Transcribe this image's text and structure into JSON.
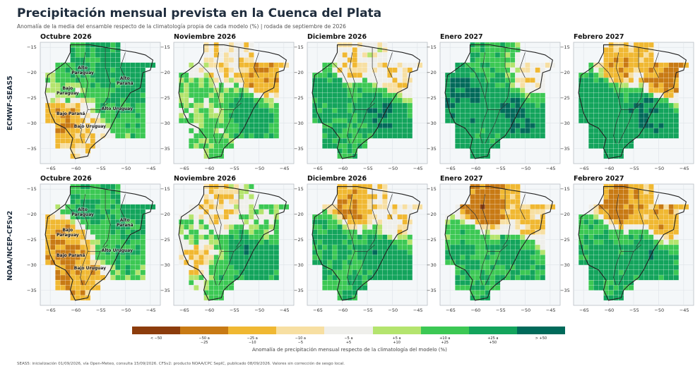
{
  "title": "Precipitación mensual prevista en la Cuenca del Plata",
  "subtitle": "Anomalía de la media del ensamble respecto de la climatología propia de cada modelo (%) | rodada de septiembre de 2026",
  "models": [
    "ECMWF-SEAS5",
    "NOAA/NCEP-CFSv2"
  ],
  "months": [
    "Octubre 2026",
    "Noviembre 2026",
    "Diciembre 2026",
    "Enero 2027",
    "Febrero 2027"
  ],
  "region_labels": [
    "Alto Paraguay",
    "Bajo Paraguay",
    "Alto Paraná",
    "Alto Uruguay",
    "Bajo Paraná",
    "Bajo Uruguay"
  ],
  "x_ticks": [
    "−65",
    "−60",
    "−55",
    "−50",
    "−45"
  ],
  "y_ticks": [
    "−15",
    "−20",
    "−25",
    "−30",
    "−35"
  ],
  "legend": {
    "title": "Anomalía de precipitación mensual respecto de la climatología del modelo (%)",
    "classes": [
      "< −50",
      "−50 a −25",
      "−25 a −10",
      "−10 a −5",
      "−5 a +5",
      "+5 a +10",
      "+10 a +25",
      "+25 a +50",
      "> +50"
    ],
    "colors": [
      "#8c3c0c",
      "#c87a14",
      "#f0b832",
      "#f7dfa2",
      "#efefeb",
      "#b4e46e",
      "#3cc854",
      "#13a45c",
      "#006a5a"
    ]
  },
  "footnote": "SEAS5: inicialización 01/09/2026, vía Open-Meteo, consulta 15/09/2026. CFSv2: producto NOAA/CPC SepIC, publicado 08/09/2026. Valores sin corrección de sesgo local.",
  "chart_data": {
    "type": "heatmap",
    "value": "Anomalía de precipitación mensual (%)",
    "x_range": [
      -67,
      -43
    ],
    "y_range": [
      -38,
      -14
    ],
    "grid_resolution_deg": 1,
    "regions": [
      {
        "name": "Alto Paraguay",
        "lon": -58.5,
        "lat": -19.5
      },
      {
        "name": "Bajo Paraguay",
        "lon": -61.5,
        "lat": -23.5
      },
      {
        "name": "Alto Paraná",
        "lon": -49.5,
        "lat": -21.5
      },
      {
        "name": "Alto Uruguay",
        "lon": -52.5,
        "lat": -27.5
      },
      {
        "name": "Bajo Paraná",
        "lon": -61.5,
        "lat": -28.5
      },
      {
        "name": "Bajo Uruguay",
        "lon": -58,
        "lat": -31
      }
    ],
    "panels": [
      {
        "model": "ECMWF-SEAS5",
        "month": "Octubre 2026",
        "anomaly_by_region": {
          "Alto Paraguay": 30,
          "Bajo Paraguay": 12,
          "Alto Paraná": 35,
          "Alto Uruguay": 25,
          "Bajo Paraná": -25,
          "Bajo Uruguay": -12
        }
      },
      {
        "model": "ECMWF-SEAS5",
        "month": "Noviembre 2026",
        "anomaly_by_region": {
          "Alto Paraguay": -5,
          "Bajo Paraguay": 15,
          "Alto Paraná": -25,
          "Alto Uruguay": 45,
          "Bajo Paraná": 10,
          "Bajo Uruguay": 12
        }
      },
      {
        "model": "ECMWF-SEAS5",
        "month": "Diciembre 2026",
        "anomaly_by_region": {
          "Alto Paraguay": -12,
          "Bajo Paraguay": 40,
          "Alto Paraná": -10,
          "Alto Uruguay": 55,
          "Bajo Paraná": 30,
          "Bajo Uruguay": 20
        }
      },
      {
        "model": "ECMWF-SEAS5",
        "month": "Enero 2027",
        "anomaly_by_region": {
          "Alto Paraguay": 20,
          "Bajo Paraguay": 55,
          "Alto Paraná": -6,
          "Alto Uruguay": 55,
          "Bajo Paraná": 45,
          "Bajo Uruguay": 30
        }
      },
      {
        "model": "ECMWF-SEAS5",
        "month": "Febrero 2027",
        "anomaly_by_region": {
          "Alto Paraguay": -25,
          "Bajo Paraguay": 40,
          "Alto Paraná": -30,
          "Alto Uruguay": 55,
          "Bajo Paraná": 40,
          "Bajo Uruguay": 35
        }
      },
      {
        "model": "NOAA/NCEP-CFSv2",
        "month": "Octubre 2026",
        "anomaly_by_region": {
          "Alto Paraguay": 30,
          "Bajo Paraguay": -20,
          "Alto Paraná": 30,
          "Alto Uruguay": 25,
          "Bajo Paraná": -30,
          "Bajo Uruguay": -20
        }
      },
      {
        "model": "NOAA/NCEP-CFSv2",
        "month": "Noviembre 2026",
        "anomaly_by_region": {
          "Alto Paraguay": -12,
          "Bajo Paraguay": 10,
          "Alto Paraná": 8,
          "Alto Uruguay": 45,
          "Bajo Paraná": -15,
          "Bajo Uruguay": 20
        }
      },
      {
        "model": "NOAA/NCEP-CFSv2",
        "month": "Diciembre 2026",
        "anomaly_by_region": {
          "Alto Paraguay": -30,
          "Bajo Paraguay": 30,
          "Alto Paraná": -6,
          "Alto Uruguay": 45,
          "Bajo Paraná": 30,
          "Bajo Uruguay": 25
        }
      },
      {
        "model": "NOAA/NCEP-CFSv2",
        "month": "Enero 2027",
        "anomaly_by_region": {
          "Alto Paraguay": -45,
          "Bajo Paraguay": 20,
          "Alto Paraná": -12,
          "Alto Uruguay": 35,
          "Bajo Paraná": 30,
          "Bajo Uruguay": 20
        }
      },
      {
        "model": "NOAA/NCEP-CFSv2",
        "month": "Febrero 2027",
        "anomaly_by_region": {
          "Alto Paraguay": -35,
          "Bajo Paraguay": 25,
          "Alto Paraná": -20,
          "Alto Uruguay": 45,
          "Bajo Paraná": 35,
          "Bajo Uruguay": 30
        }
      }
    ]
  }
}
